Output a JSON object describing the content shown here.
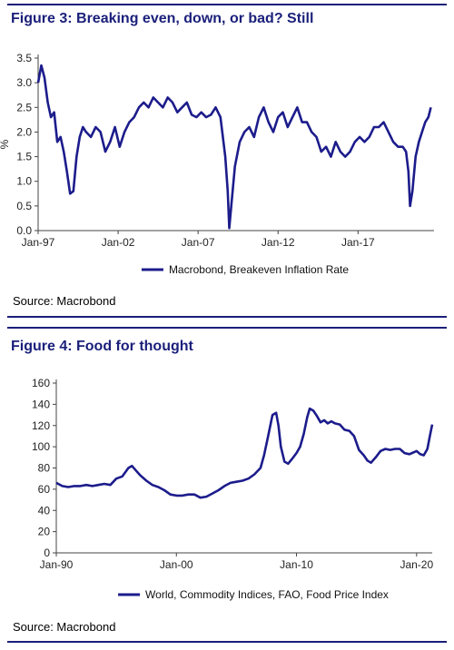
{
  "figures": [
    {
      "title": "Figure 3: Breaking even, down, or bad? Still",
      "source": "Source: Macrobond"
    },
    {
      "title": "Figure 4: Food for thought",
      "source": "Source: Macrobond"
    }
  ],
  "colors": {
    "accent": "#1a1f7a",
    "line": "#1c1c8c",
    "rule": "#1a1f7a"
  },
  "chart_data": [
    {
      "type": "line",
      "title": "Figure 3: Breaking even, down, or bad? Still",
      "ylabel": "%",
      "xlabel": "",
      "ylim": [
        0,
        3.5
      ],
      "yticks": [
        "0.0",
        "0.5",
        "1.0",
        "1.5",
        "2.0",
        "2.5",
        "3.0",
        "3.5"
      ],
      "xticks": [
        "Jan-97",
        "Jan-02",
        "Jan-07",
        "Jan-12",
        "Jan-17"
      ],
      "xtick_years": [
        1997,
        2002,
        2007,
        2012,
        2017
      ],
      "xlim_years": [
        1997,
        2021.75
      ],
      "legend_position": "bottom",
      "grid": false,
      "series": [
        {
          "name": "Macrobond, Breakeven Inflation Rate",
          "x": [
            1997.0,
            1997.2,
            1997.4,
            1997.6,
            1997.8,
            1998.0,
            1998.2,
            1998.4,
            1998.6,
            1998.8,
            1999.0,
            1999.2,
            1999.4,
            1999.6,
            1999.8,
            2000.0,
            2000.3,
            2000.6,
            2000.9,
            2001.2,
            2001.5,
            2001.8,
            2002.1,
            2002.4,
            2002.7,
            2003.0,
            2003.3,
            2003.6,
            2003.9,
            2004.2,
            2004.5,
            2004.8,
            2005.1,
            2005.4,
            2005.7,
            2006.0,
            2006.3,
            2006.6,
            2006.9,
            2007.2,
            2007.5,
            2007.8,
            2008.1,
            2008.4,
            2008.7,
            2008.85,
            2008.95,
            2009.1,
            2009.3,
            2009.6,
            2009.9,
            2010.2,
            2010.5,
            2010.8,
            2011.1,
            2011.4,
            2011.7,
            2012.0,
            2012.3,
            2012.6,
            2012.9,
            2013.2,
            2013.5,
            2013.8,
            2014.1,
            2014.4,
            2014.7,
            2015.0,
            2015.3,
            2015.6,
            2015.9,
            2016.2,
            2016.5,
            2016.8,
            2017.1,
            2017.4,
            2017.7,
            2018.0,
            2018.3,
            2018.6,
            2018.9,
            2019.2,
            2019.5,
            2019.8,
            2020.0,
            2020.15,
            2020.25,
            2020.4,
            2020.6,
            2020.8,
            2021.0,
            2021.2,
            2021.4,
            2021.55
          ],
          "values": [
            3.0,
            3.35,
            3.1,
            2.6,
            2.3,
            2.4,
            1.8,
            1.9,
            1.6,
            1.2,
            0.75,
            0.8,
            1.5,
            1.9,
            2.1,
            2.0,
            1.9,
            2.1,
            2.0,
            1.6,
            1.8,
            2.1,
            1.7,
            2.0,
            2.2,
            2.3,
            2.5,
            2.6,
            2.5,
            2.7,
            2.6,
            2.5,
            2.7,
            2.6,
            2.4,
            2.5,
            2.6,
            2.35,
            2.3,
            2.4,
            2.3,
            2.35,
            2.5,
            2.3,
            1.5,
            0.8,
            0.05,
            0.6,
            1.3,
            1.8,
            2.0,
            2.1,
            1.9,
            2.3,
            2.5,
            2.2,
            2.0,
            2.3,
            2.4,
            2.1,
            2.3,
            2.5,
            2.2,
            2.2,
            2.0,
            1.9,
            1.6,
            1.7,
            1.5,
            1.8,
            1.6,
            1.5,
            1.6,
            1.8,
            1.9,
            1.8,
            1.9,
            2.1,
            2.1,
            2.2,
            2.0,
            1.8,
            1.7,
            1.7,
            1.6,
            1.2,
            0.5,
            0.8,
            1.5,
            1.8,
            2.0,
            2.2,
            2.3,
            2.5
          ]
        }
      ]
    },
    {
      "type": "line",
      "title": "Figure 4: Food for thought",
      "xlabel": "",
      "ylabel": "",
      "ylim": [
        0,
        160
      ],
      "yticks": [
        "0",
        "20",
        "40",
        "60",
        "80",
        "100",
        "120",
        "140",
        "160"
      ],
      "xticks": [
        "Jan-90",
        "Jan-00",
        "Jan-10",
        "Jan-20"
      ],
      "xtick_years": [
        1990,
        2000,
        2010,
        2020
      ],
      "xlim_years": [
        1990,
        2021.3
      ],
      "legend_position": "bottom",
      "grid": false,
      "series": [
        {
          "name": "World, Commodity Indices, FAO, Food Price Index",
          "x": [
            1990.0,
            1990.5,
            1991.0,
            1991.5,
            1992.0,
            1992.5,
            1993.0,
            1993.5,
            1994.0,
            1994.5,
            1995.0,
            1995.5,
            1996.0,
            1996.3,
            1996.6,
            1997.0,
            1997.5,
            1998.0,
            1998.5,
            1999.0,
            1999.5,
            2000.0,
            2000.5,
            2001.0,
            2001.5,
            2002.0,
            2002.5,
            2003.0,
            2003.5,
            2004.0,
            2004.5,
            2005.0,
            2005.5,
            2006.0,
            2006.5,
            2007.0,
            2007.3,
            2007.6,
            2008.0,
            2008.3,
            2008.5,
            2008.7,
            2009.0,
            2009.3,
            2009.6,
            2010.0,
            2010.3,
            2010.6,
            2010.9,
            2011.1,
            2011.4,
            2011.7,
            2012.0,
            2012.3,
            2012.6,
            2012.9,
            2013.2,
            2013.6,
            2014.0,
            2014.4,
            2014.8,
            2015.2,
            2015.6,
            2015.9,
            2016.2,
            2016.6,
            2017.0,
            2017.4,
            2017.8,
            2018.2,
            2018.6,
            2019.0,
            2019.4,
            2019.8,
            2020.0,
            2020.3,
            2020.6,
            2020.9,
            2021.1,
            2021.3
          ],
          "values": [
            66,
            63,
            62,
            63,
            63,
            64,
            63,
            64,
            65,
            64,
            70,
            72,
            80,
            82,
            78,
            73,
            68,
            64,
            62,
            59,
            55,
            54,
            54,
            55,
            55,
            52,
            53,
            56,
            59,
            63,
            66,
            67,
            68,
            70,
            74,
            80,
            92,
            108,
            130,
            132,
            120,
            100,
            86,
            84,
            88,
            94,
            100,
            112,
            128,
            136,
            134,
            129,
            123,
            125,
            122,
            124,
            122,
            121,
            116,
            115,
            110,
            97,
            92,
            87,
            85,
            90,
            96,
            98,
            97,
            98,
            98,
            94,
            93,
            95,
            96,
            93,
            92,
            98,
            110,
            121
          ]
        }
      ]
    }
  ]
}
